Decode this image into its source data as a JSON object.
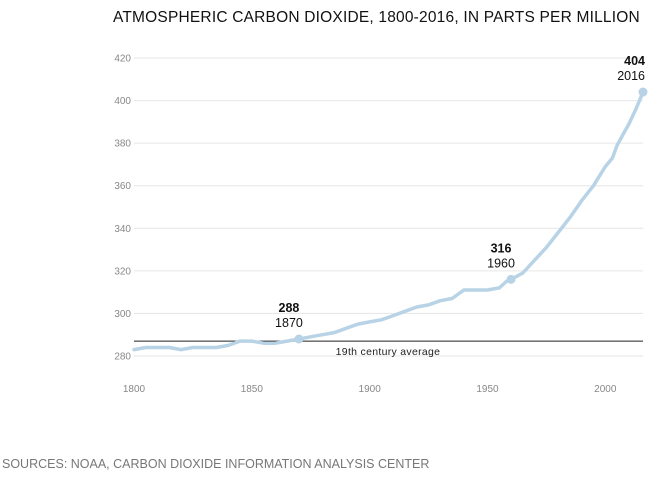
{
  "title": "ATMOSPHERIC CARBON DIOXIDE, 1800-2016, IN PARTS PER MILLION",
  "source": "SOURCES: NOAA, CARBON DIOXIDE INFORMATION ANALYSIS CENTER",
  "colors": {
    "line": "#b8d3e6",
    "reference": "#222222",
    "grid": "#e6e6e6",
    "tick_text": "#888888"
  },
  "chart_data": {
    "type": "line",
    "title": "ATMOSPHERIC CARBON DIOXIDE, 1800-2016, IN PARTS PER MILLION",
    "xlim": [
      1800,
      2016
    ],
    "ylim": [
      280,
      420
    ],
    "x_ticks": [
      1800,
      1850,
      1900,
      1950,
      2000
    ],
    "y_ticks": [
      280,
      300,
      320,
      340,
      360,
      380,
      400,
      420
    ],
    "grid": "horizontal",
    "series": [
      {
        "x": [
          1800,
          1805,
          1810,
          1815,
          1820,
          1825,
          1830,
          1835,
          1840,
          1845,
          1850,
          1855,
          1860,
          1865,
          1870,
          1875,
          1880,
          1885,
          1890,
          1895,
          1900,
          1905,
          1910,
          1915,
          1920,
          1925,
          1930,
          1935,
          1940,
          1945,
          1950,
          1955,
          1958,
          1960,
          1965,
          1970,
          1975,
          1980,
          1985,
          1990,
          1995,
          2000,
          2003,
          2005,
          2008,
          2010,
          2013,
          2016
        ],
        "values": [
          283,
          284,
          284,
          284,
          283,
          284,
          284,
          284,
          285,
          287,
          287,
          286,
          286,
          287,
          288,
          289,
          290,
          291,
          293,
          295,
          296,
          297,
          299,
          301,
          303,
          304,
          306,
          307,
          311,
          311,
          311,
          312,
          315,
          316,
          319,
          325,
          331,
          338,
          345,
          353,
          360,
          369,
          373,
          379,
          385,
          389,
          396,
          404
        ]
      }
    ],
    "reference_line": {
      "value": 287,
      "label": "19th century average"
    },
    "annotations": [
      {
        "x": 1870,
        "y": 288,
        "value_label": "288",
        "year_label": "1870"
      },
      {
        "x": 1960,
        "y": 316,
        "value_label": "316",
        "year_label": "1960"
      },
      {
        "x": 2016,
        "y": 404,
        "value_label": "404",
        "year_label": "2016"
      }
    ]
  }
}
